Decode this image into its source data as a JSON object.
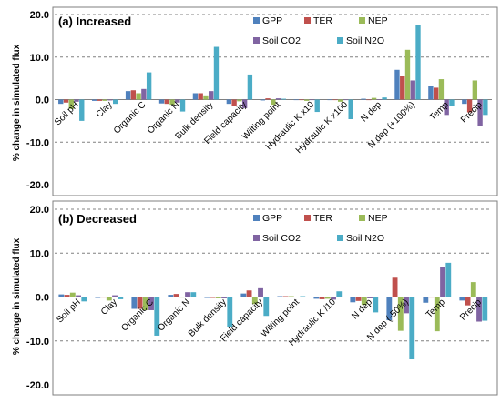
{
  "figure": {
    "ylabel": "% change in simulated flux"
  },
  "chart_data": [
    {
      "type": "bar",
      "title": "(a) Increased",
      "ylabel": "% change in simulated flux",
      "ylim": [
        -20,
        20
      ],
      "yticks": [
        -20,
        -10,
        0,
        10,
        20
      ],
      "grid": "dashed at ±10 and 20",
      "legend_placement": "top-right",
      "categories": [
        "Soil pH",
        "Clay",
        "Organic C",
        "Organic N",
        "Bulk density",
        "Field capacity",
        "Wilting point",
        "Hydraulic K x10",
        "Hydraulic K x100",
        "N dep",
        "N dep (+100%)",
        "Temp",
        "Precip"
      ],
      "series": [
        {
          "name": "GPP",
          "color": "#4f81bd",
          "values": [
            -1.0,
            -0.3,
            2.0,
            -0.9,
            1.5,
            -1.0,
            -0.2,
            -0.1,
            -0.1,
            0.2,
            7.0,
            3.2,
            -1.0
          ]
        },
        {
          "name": "TER",
          "color": "#c0504d",
          "values": [
            -0.7,
            -0.3,
            2.2,
            -1.0,
            1.5,
            -1.5,
            0.3,
            0.0,
            0.0,
            0.0,
            5.6,
            2.8,
            -3.0
          ]
        },
        {
          "name": "NEP",
          "color": "#9bbb59",
          "values": [
            -2.2,
            -0.3,
            1.5,
            -1.2,
            1.0,
            -0.4,
            -1.2,
            -0.3,
            -0.5,
            0.4,
            11.7,
            4.8,
            4.5
          ]
        },
        {
          "name": "Soil CO2",
          "color": "#8064a2",
          "values": [
            -0.5,
            -0.2,
            2.5,
            -0.7,
            2.0,
            -2.0,
            0.3,
            -0.1,
            0.0,
            0.1,
            4.5,
            -3.6,
            -6.3
          ]
        },
        {
          "name": "Soil N2O",
          "color": "#4bacc6",
          "values": [
            -5.0,
            -1.0,
            6.4,
            -2.8,
            12.4,
            5.9,
            0.2,
            -2.9,
            -4.6,
            0.5,
            17.6,
            -1.5,
            -3.6
          ]
        }
      ]
    },
    {
      "type": "bar",
      "title": "(b) Decreased",
      "ylabel": "% change in simulated flux",
      "ylim": [
        -20,
        20
      ],
      "yticks": [
        -20,
        -10,
        0,
        10,
        20
      ],
      "grid": "dashed at ±10 and 20",
      "legend_placement": "top-right",
      "categories": [
        "Soil pH",
        "Clay",
        "Organic C",
        "Organic N",
        "Bulk density",
        "Field capacity",
        "Wilting point",
        "Hydraulic K /10",
        "N dep",
        "N dep (-50%)",
        "Temp",
        "Precip"
      ],
      "series": [
        {
          "name": "GPP",
          "color": "#4f81bd",
          "values": [
            0.6,
            -0.2,
            -2.7,
            0.5,
            -0.2,
            0.8,
            0.2,
            -0.4,
            -1.2,
            -5.3,
            -1.3,
            -0.8
          ]
        },
        {
          "name": "TER",
          "color": "#c0504d",
          "values": [
            0.5,
            -0.1,
            -2.7,
            0.7,
            -0.2,
            1.5,
            0.2,
            -0.5,
            -0.9,
            4.4,
            0.0,
            -1.9
          ]
        },
        {
          "name": "NEP",
          "color": "#9bbb59",
          "values": [
            1.0,
            -0.8,
            -3.0,
            0.0,
            -0.3,
            -1.6,
            0.2,
            -0.4,
            -1.8,
            -7.7,
            -7.8,
            3.4
          ]
        },
        {
          "name": "Soil CO2",
          "color": "#8064a2",
          "values": [
            0.4,
            0.4,
            -3.0,
            1.1,
            -0.3,
            2.0,
            0.1,
            -0.6,
            -0.3,
            -3.7,
            6.9,
            -5.6
          ]
        },
        {
          "name": "Soil N2O",
          "color": "#4bacc6",
          "values": [
            -1.0,
            -0.5,
            -8.8,
            1.1,
            -6.8,
            -4.3,
            0.2,
            1.3,
            -3.5,
            -14.2,
            7.8,
            -5.4
          ]
        }
      ]
    }
  ]
}
